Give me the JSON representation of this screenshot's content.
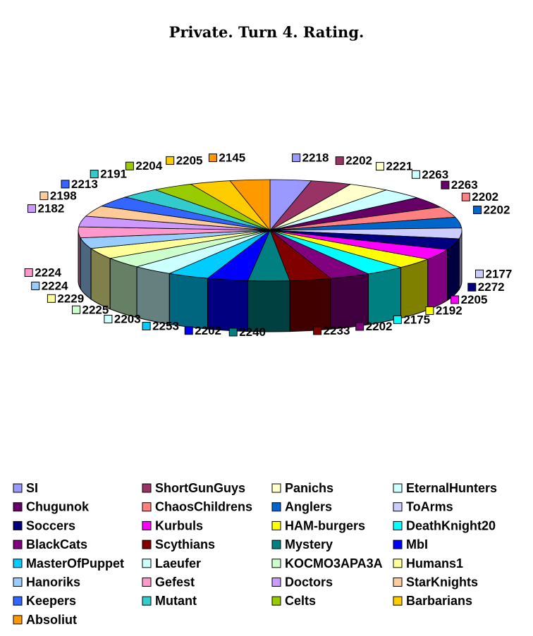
{
  "chart_data": {
    "type": "pie",
    "title": "Private. Turn 4. Rating.",
    "legend_position": "bottom",
    "style": "3d-exploded-pie",
    "slices": [
      {
        "name": "SI",
        "value": 2218,
        "color": "#9999FF"
      },
      {
        "name": "ShortGunGuys",
        "value": 2202,
        "color": "#993366"
      },
      {
        "name": "Panichs",
        "value": 2221,
        "color": "#FFFFCC"
      },
      {
        "name": "EternalHunters",
        "value": 2263,
        "color": "#CCFFFF"
      },
      {
        "name": "Chugunok",
        "value": 2263,
        "color": "#660066"
      },
      {
        "name": "ChaosChildrens",
        "value": 2202,
        "color": "#FF8080"
      },
      {
        "name": "Anglers",
        "value": 2202,
        "color": "#0066CC"
      },
      {
        "name": "ToArms",
        "value": 2177,
        "color": "#CCCCFF"
      },
      {
        "name": "Soccers",
        "value": 2272,
        "color": "#000080"
      },
      {
        "name": "Kurbuls",
        "value": 2205,
        "color": "#FF00FF"
      },
      {
        "name": "HAM-burgers",
        "value": 2192,
        "color": "#FFFF00"
      },
      {
        "name": "DeathKnight20",
        "value": 2175,
        "color": "#00FFFF"
      },
      {
        "name": "BlackCats",
        "value": 2202,
        "color": "#800080"
      },
      {
        "name": "Scythians",
        "value": 2233,
        "color": "#800000"
      },
      {
        "name": "Mystery",
        "value": 2240,
        "color": "#008080"
      },
      {
        "name": "MbI",
        "value": 2202,
        "color": "#0000FF"
      },
      {
        "name": "MasterOfPuppet",
        "value": 2253,
        "color": "#00CCFF"
      },
      {
        "name": "Laeufer",
        "value": 2203,
        "color": "#CCFFFF"
      },
      {
        "name": "KOCMO3APA3A",
        "value": 2225,
        "color": "#CCFFCC"
      },
      {
        "name": "Humans1",
        "value": 2229,
        "color": "#FFFF99"
      },
      {
        "name": "Hanoriks",
        "value": 2224,
        "color": "#99CCFF"
      },
      {
        "name": "Gefest",
        "value": 2224,
        "color": "#FF99CC"
      },
      {
        "name": "Doctors",
        "value": 2182,
        "color": "#CC99FF"
      },
      {
        "name": "StarKnights",
        "value": 2198,
        "color": "#FFCC99"
      },
      {
        "name": "Keepers",
        "value": 2213,
        "color": "#3366FF"
      },
      {
        "name": "Mutant",
        "value": 2191,
        "color": "#33CCCC"
      },
      {
        "name": "Celts",
        "value": 2204,
        "color": "#99CC00"
      },
      {
        "name": "Barbarians",
        "value": 2205,
        "color": "#FFCC00"
      },
      {
        "name": "Absoliut",
        "value": 2145,
        "color": "#FF9900"
      }
    ]
  }
}
